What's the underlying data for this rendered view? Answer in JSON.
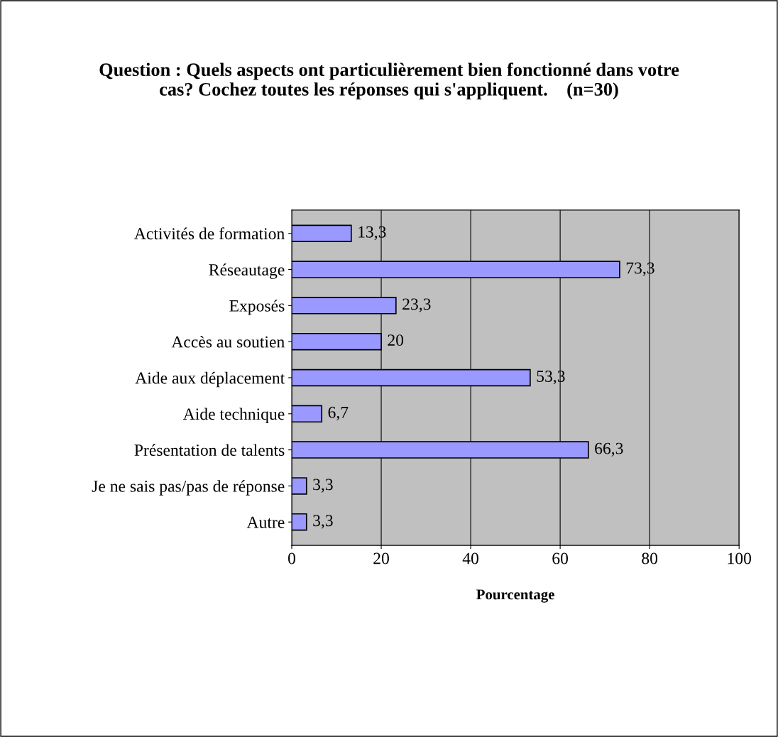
{
  "chart_data": {
    "type": "bar",
    "orientation": "horizontal",
    "title": "Question : Quels aspects ont particulièrement bien fonctionné dans votre cas? Cochez toutes les réponses qui s'appliquent.    (n=30)",
    "xlabel": "Pourcentage",
    "categories": [
      "Activités de formation",
      "Réseautage",
      "Exposés",
      "Accès au soutien",
      "Aide aux déplacement",
      "Aide technique",
      "Présentation de talents",
      "Je ne sais pas/pas de réponse",
      "Autre"
    ],
    "values": [
      13.3,
      73.3,
      23.3,
      20,
      53.3,
      6.7,
      66.3,
      3.3,
      3.3
    ],
    "value_labels": [
      "13,3",
      "73,3",
      "23,3",
      "20",
      "53,3",
      "6,7",
      "66,3",
      "3,3",
      "3,3"
    ],
    "color": "#9999ff",
    "xlim": [
      0,
      100
    ],
    "xticks": [
      0,
      20,
      40,
      60,
      80,
      100
    ],
    "grid": "x",
    "legend": false
  }
}
